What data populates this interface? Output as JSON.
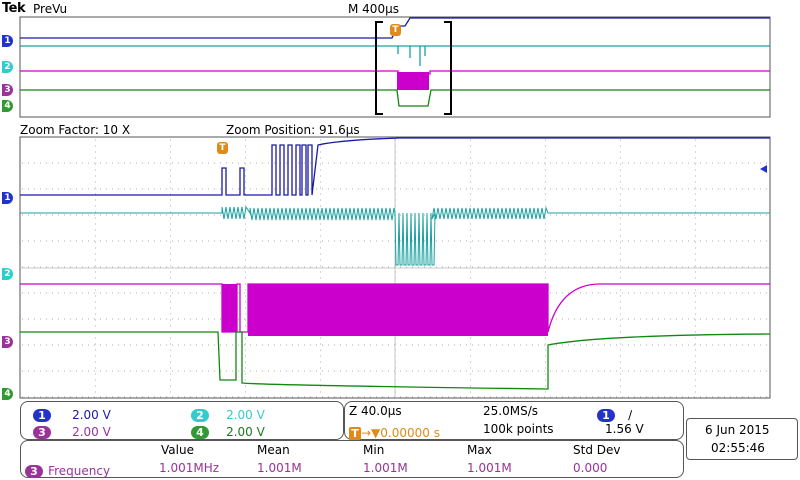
{
  "header": {
    "brand": "Tek",
    "mode": "PreVu",
    "timebase": "M 400µs"
  },
  "zoom": {
    "factor_label": "Zoom Factor: 10 X",
    "position_label": "Zoom Position: 91.6µs"
  },
  "channels": [
    {
      "id": "1",
      "scale": "2.00 V",
      "color": "#1a1aa6",
      "badge_color": "#2233cc"
    },
    {
      "id": "2",
      "scale": "2.00 V",
      "color": "#1aa0a0",
      "badge_color": "#33cccc"
    },
    {
      "id": "3",
      "scale": "2.00 V",
      "color": "#cc00cc",
      "badge_color": "#993399"
    },
    {
      "id": "4",
      "scale": "2.00 V",
      "color": "#118811",
      "badge_color": "#339933"
    }
  ],
  "timing": {
    "zoom_time": "Z 40.0µs",
    "sample_rate": "25.0MS/s",
    "trigger_marker": "T",
    "trigger_delay": "→▼0.00000 s",
    "record_length": "100k points",
    "trigger_channel": "1",
    "trigger_slope": "∕",
    "trigger_level": "1.56 V"
  },
  "datetime": {
    "date": "6 Jun  2015",
    "time": "02:55:46"
  },
  "measurements": {
    "headers": [
      "Value",
      "Mean",
      "Min",
      "Max",
      "Std Dev"
    ],
    "rows": [
      {
        "channel": "3",
        "name": "Frequency",
        "value": "1.001MHz",
        "mean": "1.001M",
        "min": "1.001M",
        "max": "1.001M",
        "std_dev": "0.000"
      }
    ]
  }
}
